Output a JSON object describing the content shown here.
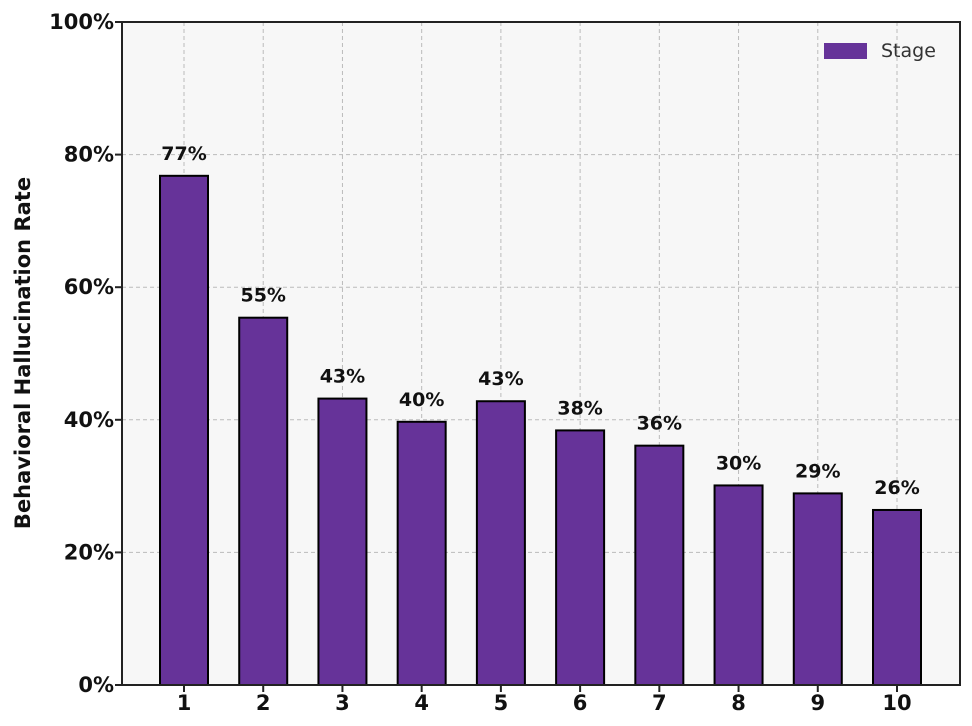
{
  "chart_data": {
    "type": "bar",
    "categories": [
      "1",
      "2",
      "3",
      "4",
      "5",
      "6",
      "7",
      "8",
      "9",
      "10"
    ],
    "series": [
      {
        "name": "Stage",
        "values": [
          77,
          55,
          43,
          40,
          43,
          38,
          36,
          30,
          29,
          26
        ]
      }
    ],
    "data_labels": [
      "77%",
      "55%",
      "43%",
      "40%",
      "43%",
      "38%",
      "36%",
      "30%",
      "29%",
      "26%"
    ],
    "bar_heights_estimated": [
      76.8,
      55.4,
      43.2,
      39.7,
      42.8,
      38.4,
      36.1,
      30.1,
      28.9,
      26.4
    ],
    "title": "",
    "xlabel": "",
    "ylabel": "Behavioral Hallucination Rate",
    "ylim": [
      0,
      100
    ],
    "yticks": [
      "0%",
      "20%",
      "40%",
      "60%",
      "80%",
      "100%"
    ],
    "grid": true,
    "legend_position": "top-right",
    "colors": {
      "bar": "#663399",
      "bar_edge": "#000000",
      "plot_background": "#f7f7f7",
      "grid": "#bbbbbb"
    }
  }
}
